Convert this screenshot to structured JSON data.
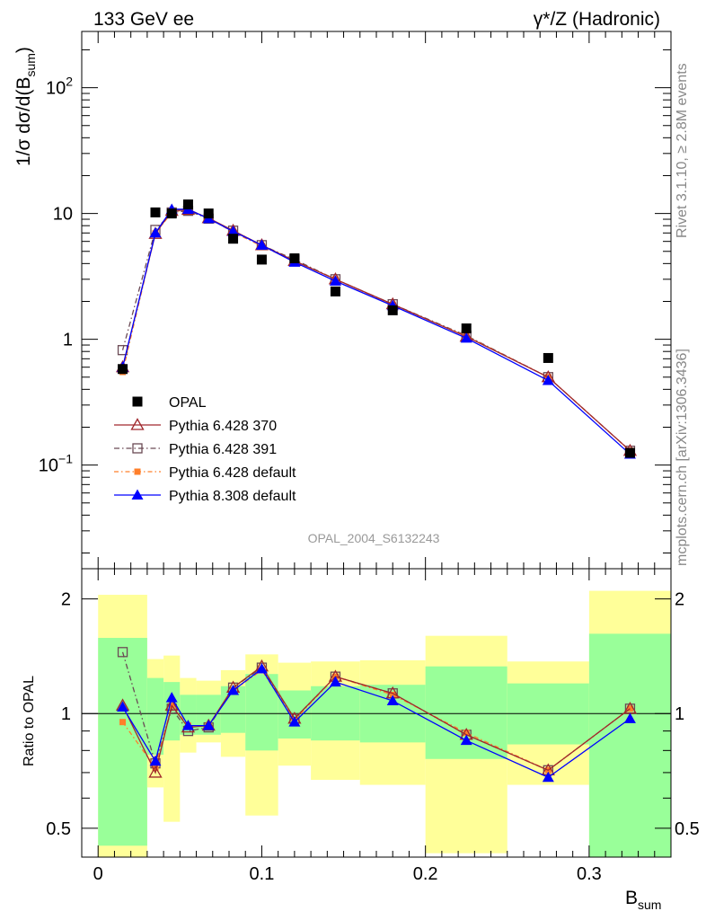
{
  "header": {
    "energy_label": "133 GeV ee",
    "process_label": "γ*/Z (Hadronic)"
  },
  "side": {
    "rivet_label": "Rivet 3.1.10, ≥ 2.8M events",
    "source_label": "mcplots.cern.ch [arXiv:1306.3436]"
  },
  "analysis_id": "OPAL_2004_S6132243",
  "axes": {
    "ylabel_main": "1/σ dσ/d(B",
    "ylabel_main_sub": "sum",
    "ylabel_main_end": ")",
    "ylabel_ratio": "Ratio to OPAL",
    "xlabel": "B",
    "xlabel_sub": "sum"
  },
  "colors": {
    "band_inner": "#99ff99",
    "band_outer": "#ffff99",
    "opal": "#000000",
    "p370": "#a0282d",
    "p391": "#6b4a55",
    "p6def": "#ff7f2a",
    "p8def": "#0000ff"
  },
  "chart_data": [
    {
      "type": "scatter",
      "title": "",
      "xlabel": "B_sum",
      "ylabel": "1/σ dσ/d(B_sum)",
      "yscale": "log",
      "xlim": [
        -0.01,
        0.35
      ],
      "ylim": [
        0.015,
        280
      ],
      "y_tick_labels": [
        "10^-1",
        "1",
        "10",
        "10^2"
      ],
      "legend_position": "lower-left",
      "x": [
        0.015,
        0.035,
        0.045,
        0.055,
        0.0675,
        0.0825,
        0.1,
        0.12,
        0.145,
        0.18,
        0.225,
        0.275,
        0.325
      ],
      "series": [
        {
          "name": "OPAL",
          "marker": "square",
          "values": [
            0.58,
            10.2,
            10.0,
            11.8,
            10.0,
            6.3,
            4.3,
            4.4,
            2.4,
            1.7,
            1.22,
            0.71,
            0.125
          ]
        },
        {
          "name": "Pythia 6.428 370",
          "marker": "triangle-open",
          "values": [
            0.6,
            6.9,
            10.5,
            10.7,
            9.2,
            7.3,
            5.6,
            4.2,
            3.0,
            1.9,
            1.05,
            0.5,
            0.13
          ]
        },
        {
          "name": "Pythia 6.428 391",
          "marker": "square-open",
          "values": [
            0.82,
            7.4,
            10.2,
            10.5,
            9.1,
            7.3,
            5.6,
            4.3,
            3.0,
            1.9,
            1.07,
            0.5,
            0.13
          ]
        },
        {
          "name": "Pythia 6.428 default",
          "marker": "square-small",
          "values": [
            0.55,
            6.95,
            10.2,
            10.8,
            9.2,
            7.1,
            5.5,
            4.2,
            3.0,
            1.88,
            1.06,
            0.5,
            0.13
          ]
        },
        {
          "name": "Pythia 8.308 default",
          "marker": "triangle",
          "values": [
            0.6,
            7.0,
            10.8,
            10.8,
            9.1,
            7.2,
            5.6,
            4.1,
            2.9,
            1.85,
            1.02,
            0.47,
            0.122
          ]
        }
      ]
    },
    {
      "type": "scatter",
      "title": "",
      "xlabel": "B_sum",
      "ylabel": "Ratio to OPAL",
      "yscale": "log",
      "xlim": [
        -0.01,
        0.35
      ],
      "ylim": [
        0.42,
        2.4
      ],
      "x_tick_labels": [
        "0",
        "0.1",
        "0.2",
        "0.3"
      ],
      "y_tick_labels": [
        "0.5",
        "1",
        "2"
      ],
      "reference_line": 1,
      "x": [
        0.015,
        0.035,
        0.045,
        0.055,
        0.0675,
        0.0825,
        0.1,
        0.12,
        0.145,
        0.18,
        0.225,
        0.275,
        0.325
      ],
      "bins": [
        [
          0,
          0.03
        ],
        [
          0.03,
          0.04
        ],
        [
          0.04,
          0.05
        ],
        [
          0.05,
          0.06
        ],
        [
          0.06,
          0.075
        ],
        [
          0.075,
          0.09
        ],
        [
          0.09,
          0.11
        ],
        [
          0.11,
          0.13
        ],
        [
          0.13,
          0.16
        ],
        [
          0.16,
          0.2
        ],
        [
          0.2,
          0.25
        ],
        [
          0.25,
          0.3
        ],
        [
          0.3,
          0.35
        ]
      ],
      "band_inner": [
        [
          0.45,
          1.58
        ],
        [
          0.78,
          1.24
        ],
        [
          0.85,
          1.21
        ],
        [
          0.88,
          1.12
        ],
        [
          0.88,
          1.12
        ],
        [
          0.89,
          1.18
        ],
        [
          0.8,
          1.27
        ],
        [
          0.86,
          1.15
        ],
        [
          0.85,
          1.18
        ],
        [
          0.84,
          1.19
        ],
        [
          0.76,
          1.33
        ],
        [
          0.83,
          1.2
        ],
        [
          0.39,
          1.62
        ]
      ],
      "band_outer": [
        [
          0.32,
          2.05
        ],
        [
          0.64,
          1.39
        ],
        [
          0.52,
          1.42
        ],
        [
          0.79,
          1.24
        ],
        [
          0.84,
          1.22
        ],
        [
          0.77,
          1.3
        ],
        [
          0.54,
          1.43
        ],
        [
          0.73,
          1.36
        ],
        [
          0.67,
          1.37
        ],
        [
          0.65,
          1.38
        ],
        [
          0.43,
          1.6
        ],
        [
          0.65,
          1.37
        ],
        [
          0.34,
          2.1
        ]
      ],
      "series": [
        {
          "name": "Pythia 6.428 370",
          "values": [
            1.05,
            0.7,
            1.05,
            0.92,
            0.93,
            1.17,
            1.33,
            0.97,
            1.25,
            1.13,
            0.88,
            0.71,
            1.03
          ]
        },
        {
          "name": "Pythia 6.428 391",
          "values": [
            1.45,
            0.74,
            1.03,
            0.9,
            0.92,
            1.17,
            1.32,
            0.97,
            1.25,
            1.13,
            0.88,
            0.71,
            1.03
          ]
        },
        {
          "name": "Pythia 6.428 default",
          "values": [
            0.95,
            0.72,
            1.05,
            0.93,
            0.93,
            1.15,
            1.3,
            0.96,
            1.25,
            1.12,
            0.89,
            0.71,
            1.03
          ]
        },
        {
          "name": "Pythia 8.308 default",
          "values": [
            1.04,
            0.75,
            1.1,
            0.93,
            0.93,
            1.15,
            1.31,
            0.95,
            1.21,
            1.08,
            0.85,
            0.68,
            0.97
          ]
        }
      ]
    }
  ]
}
